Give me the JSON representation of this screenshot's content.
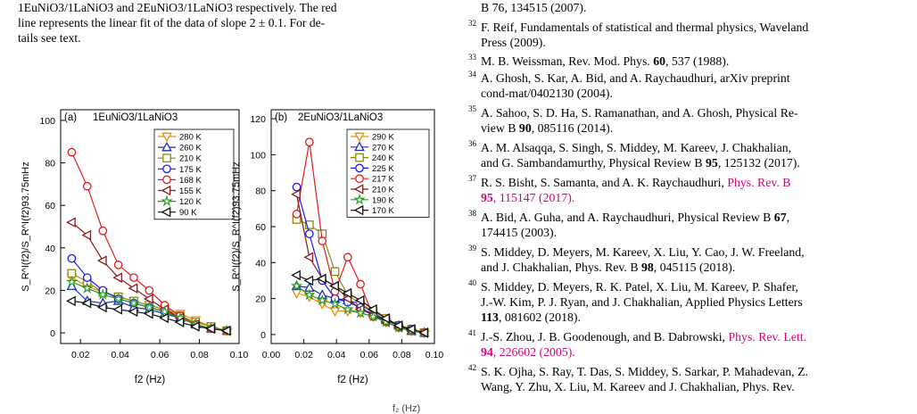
{
  "caption": {
    "lines": [
      "1EuNiO3/1LaNiO3 and 2EuNiO3/1LaNiO3 respectively. The red",
      "line represents the linear fit of the data of slope 2 ± 0.1. For de-",
      "tails see text."
    ]
  },
  "references": [
    {
      "num": "",
      "parts": [
        {
          "t": "B 76, 134515 (2007)."
        }
      ],
      "line_top": 0
    },
    {
      "num": "32",
      "parts": [
        {
          "t": "F. Reif, Fundamentals of statistical and thermal physics, Waveland"
        }
      ],
      "line_top": 22
    },
    {
      "num": "",
      "parts": [
        {
          "t": "Press (2009)."
        }
      ],
      "line_top": 39
    },
    {
      "num": "33",
      "parts": [
        {
          "t": "M. B. Weissman, Rev. Mod. Phys. "
        },
        {
          "t": "60",
          "b": true
        },
        {
          "t": ", 537 (1988)."
        }
      ],
      "line_top": 60
    },
    {
      "num": "34",
      "parts": [
        {
          "t": "A. Ghosh, S. Kar, A. Bid,  and A. Raychaudhuri, arXiv preprint"
        }
      ],
      "line_top": 79
    },
    {
      "num": "",
      "parts": [
        {
          "t": "cond-mat/0402130  (2004)."
        }
      ],
      "line_top": 96
    },
    {
      "num": "35",
      "parts": [
        {
          "t": "A. Sahoo, S. D. Ha, S. Ramanathan,  and A. Ghosh, Physical Re-"
        }
      ],
      "line_top": 118
    },
    {
      "num": "",
      "parts": [
        {
          "t": "view B "
        },
        {
          "t": "90",
          "b": true
        },
        {
          "t": ", 085116 (2014)."
        }
      ],
      "line_top": 135
    },
    {
      "num": "36",
      "parts": [
        {
          "t": "A. M. Alsaqqa, S. Singh, S. Middey, M. Kareev, J. Chakhalian,"
        }
      ],
      "line_top": 157
    },
    {
      "num": "",
      "parts": [
        {
          "t": "and G. Sambandamurthy, Physical Review B "
        },
        {
          "t": "95",
          "b": true
        },
        {
          "t": ", 125132 (2017)."
        }
      ],
      "line_top": 174
    },
    {
      "num": "37",
      "parts": [
        {
          "t": "R. S. Bisht, S. Samanta,  and A. K. Raychaudhuri, "
        },
        {
          "t": "Phys. Rev. B",
          "link": true
        }
      ],
      "line_top": 196
    },
    {
      "num": "",
      "parts": [
        {
          "t": "95",
          "b": true,
          "link": true
        },
        {
          "t": ", 115147 (2017).",
          "link": true
        }
      ],
      "line_top": 213
    },
    {
      "num": "38",
      "parts": [
        {
          "t": "A. Bid, A. Guha,  and A. Raychaudhuri, Physical Review B "
        },
        {
          "t": "67",
          "b": true
        },
        {
          "t": ","
        }
      ],
      "line_top": 235
    },
    {
      "num": "",
      "parts": [
        {
          "t": "174415 (2003)."
        }
      ],
      "line_top": 252
    },
    {
      "num": "39",
      "parts": [
        {
          "t": "S. Middey, D. Meyers, M. Kareev, X. Liu, Y. Cao, J. W. Freeland,"
        }
      ],
      "line_top": 274
    },
    {
      "num": "",
      "parts": [
        {
          "t": "and J. Chakhalian, Phys. Rev. B "
        },
        {
          "t": "98",
          "b": true
        },
        {
          "t": ", 045115 (2018)."
        }
      ],
      "line_top": 291
    },
    {
      "num": "40",
      "parts": [
        {
          "t": "S. Middey, D. Meyers, R. K. Patel, X. Liu, M. Kareev, P. Shafer,"
        }
      ],
      "line_top": 313
    },
    {
      "num": "",
      "parts": [
        {
          "t": "J.-W. Kim, P. J. Ryan,  and J. Chakhalian, Applied Physics Letters"
        }
      ],
      "line_top": 330
    },
    {
      "num": "",
      "parts": [
        {
          "t": "113",
          "b": true
        },
        {
          "t": ", 081602 (2018)."
        }
      ],
      "line_top": 347
    },
    {
      "num": "41",
      "parts": [
        {
          "t": "J.-S. Zhou, J. B. Goodenough,  and B. Dabrowski, "
        },
        {
          "t": "Phys. Rev. Lett.",
          "link": true
        }
      ],
      "line_top": 369
    },
    {
      "num": "",
      "parts": [
        {
          "t": "94",
          "b": true,
          "link": true
        },
        {
          "t": ", 226602 (2005).",
          "link": true
        }
      ],
      "line_top": 386
    },
    {
      "num": "42",
      "parts": [
        {
          "t": "S. K. Ojha, S. Ray, T. Das, S. Middey, S. Sarkar, P. Mahadevan, Z."
        }
      ],
      "line_top": 408
    },
    {
      "num": "",
      "parts": [
        {
          "t": "Wang, Y. Zhu, X. Liu, M. Kareev and J. Chakhalian, Phys. Rev."
        }
      ],
      "line_top": 425
    }
  ],
  "stray_text": "f₂ (Hz)",
  "chart_data": [
    {
      "type": "line",
      "panel_label": "(a)",
      "title": "1EuNiO3/1LaNiO3",
      "xlabel": "f2 (Hz)",
      "ylabel": "S_R^I(f2)/S_R^I(f2)93.75mHz",
      "xlim": [
        0.01,
        0.1
      ],
      "ylim": [
        -5,
        105
      ],
      "xticks": [
        0.02,
        0.04,
        0.06,
        0.08,
        0.1
      ],
      "xtick_labels": [
        "0.02",
        "0.04",
        "0.06",
        "0.08",
        "0.10"
      ],
      "yticks": [
        0,
        20,
        40,
        60,
        80,
        100
      ],
      "grid": false,
      "legend_position": "top-right",
      "x": [
        0.0156,
        0.0234,
        0.0313,
        0.0391,
        0.0469,
        0.0547,
        0.0625,
        0.0703,
        0.0781,
        0.0859,
        0.0938
      ],
      "series": [
        {
          "name": "280 K",
          "color": "#f28c00",
          "marker": "tri-down",
          "values": [
            26,
            22,
            19,
            17,
            15,
            13,
            11,
            9,
            6,
            3,
            1
          ]
        },
        {
          "name": "260 K",
          "color": "#1e2fb8",
          "marker": "tri-up",
          "values": [
            22,
            15,
            14,
            15,
            12,
            11,
            9,
            7,
            4,
            2,
            1
          ]
        },
        {
          "name": "210 K",
          "color": "#8a8a10",
          "marker": "square",
          "values": [
            28,
            24,
            19,
            17,
            15,
            13,
            11,
            8,
            5,
            3,
            1
          ]
        },
        {
          "name": "175 K",
          "color": "#1a1aff",
          "marker": "circle",
          "values": [
            35,
            26,
            20,
            16,
            14,
            12,
            10,
            7,
            4,
            2,
            1
          ]
        },
        {
          "name": "168 K",
          "color": "#e41a1a",
          "marker": "circle",
          "values": [
            85,
            69,
            48,
            32,
            26,
            20,
            13,
            8,
            4,
            2,
            1
          ]
        },
        {
          "name": "155 K",
          "color": "#8b1a1a",
          "marker": "tri-left",
          "values": [
            52,
            46,
            34,
            26,
            21,
            16,
            11,
            7,
            4,
            2,
            1
          ]
        },
        {
          "name": "120 K",
          "color": "#1f9a1f",
          "marker": "star",
          "values": [
            24,
            21,
            18,
            16,
            14,
            12,
            10,
            7,
            4,
            2,
            1
          ]
        },
        {
          "name": "90 K",
          "color": "#111111",
          "marker": "tri-left",
          "values": [
            15,
            14,
            12,
            11,
            10,
            9,
            7,
            5,
            3,
            2,
            1
          ]
        }
      ]
    },
    {
      "type": "line",
      "panel_label": "(b)",
      "title": "2EuNiO3/1LaNiO3",
      "xlabel": "f2 (Hz)",
      "ylabel": "S_R^I(f2)/S_R^I(f2)93.75mHz",
      "xlim": [
        0.0,
        0.1
      ],
      "ylim": [
        -5,
        125
      ],
      "xticks": [
        0.0,
        0.02,
        0.04,
        0.06,
        0.08,
        0.1
      ],
      "xtick_labels": [
        "0.00",
        "0.02",
        "0.04",
        "0.06",
        "0.08",
        "0.10"
      ],
      "yticks": [
        0,
        20,
        40,
        60,
        80,
        100,
        120
      ],
      "grid": false,
      "legend_position": "top-right",
      "x": [
        0.0156,
        0.0234,
        0.0313,
        0.0391,
        0.0469,
        0.0547,
        0.0625,
        0.0703,
        0.0781,
        0.0859,
        0.0938
      ],
      "series": [
        {
          "name": "290 K",
          "color": "#f28c00",
          "marker": "tri-down",
          "values": [
            23,
            21,
            17,
            13,
            13,
            12,
            10,
            7,
            4,
            2,
            1
          ]
        },
        {
          "name": "270 K",
          "color": "#1e2fb8",
          "marker": "tri-up",
          "values": [
            27,
            26,
            22,
            20,
            19,
            17,
            12,
            8,
            5,
            2,
            1
          ]
        },
        {
          "name": "240 K",
          "color": "#8a8a10",
          "marker": "square",
          "values": [
            64,
            61,
            56,
            35,
            22,
            17,
            13,
            9,
            5,
            3,
            1
          ]
        },
        {
          "name": "225 K",
          "color": "#1a1aff",
          "marker": "circle",
          "values": [
            82,
            56,
            30,
            20,
            18,
            15,
            11,
            8,
            5,
            3,
            1
          ]
        },
        {
          "name": "217 K",
          "color": "#e41a1a",
          "marker": "circle",
          "values": [
            67,
            107,
            52,
            24,
            43,
            28,
            10,
            7,
            4,
            2,
            1
          ]
        },
        {
          "name": "210 K",
          "color": "#8b1a1a",
          "marker": "tri-left",
          "values": [
            78,
            43,
            31,
            27,
            20,
            14,
            11,
            7,
            4,
            2,
            1
          ]
        },
        {
          "name": "190 K",
          "color": "#1f9a1f",
          "marker": "star",
          "values": [
            27,
            22,
            19,
            17,
            14,
            12,
            10,
            7,
            4,
            2,
            1
          ]
        },
        {
          "name": "170 K",
          "color": "#111111",
          "marker": "tri-left",
          "values": [
            33,
            30,
            31,
            27,
            23,
            19,
            14,
            9,
            5,
            3,
            1
          ]
        }
      ]
    }
  ]
}
